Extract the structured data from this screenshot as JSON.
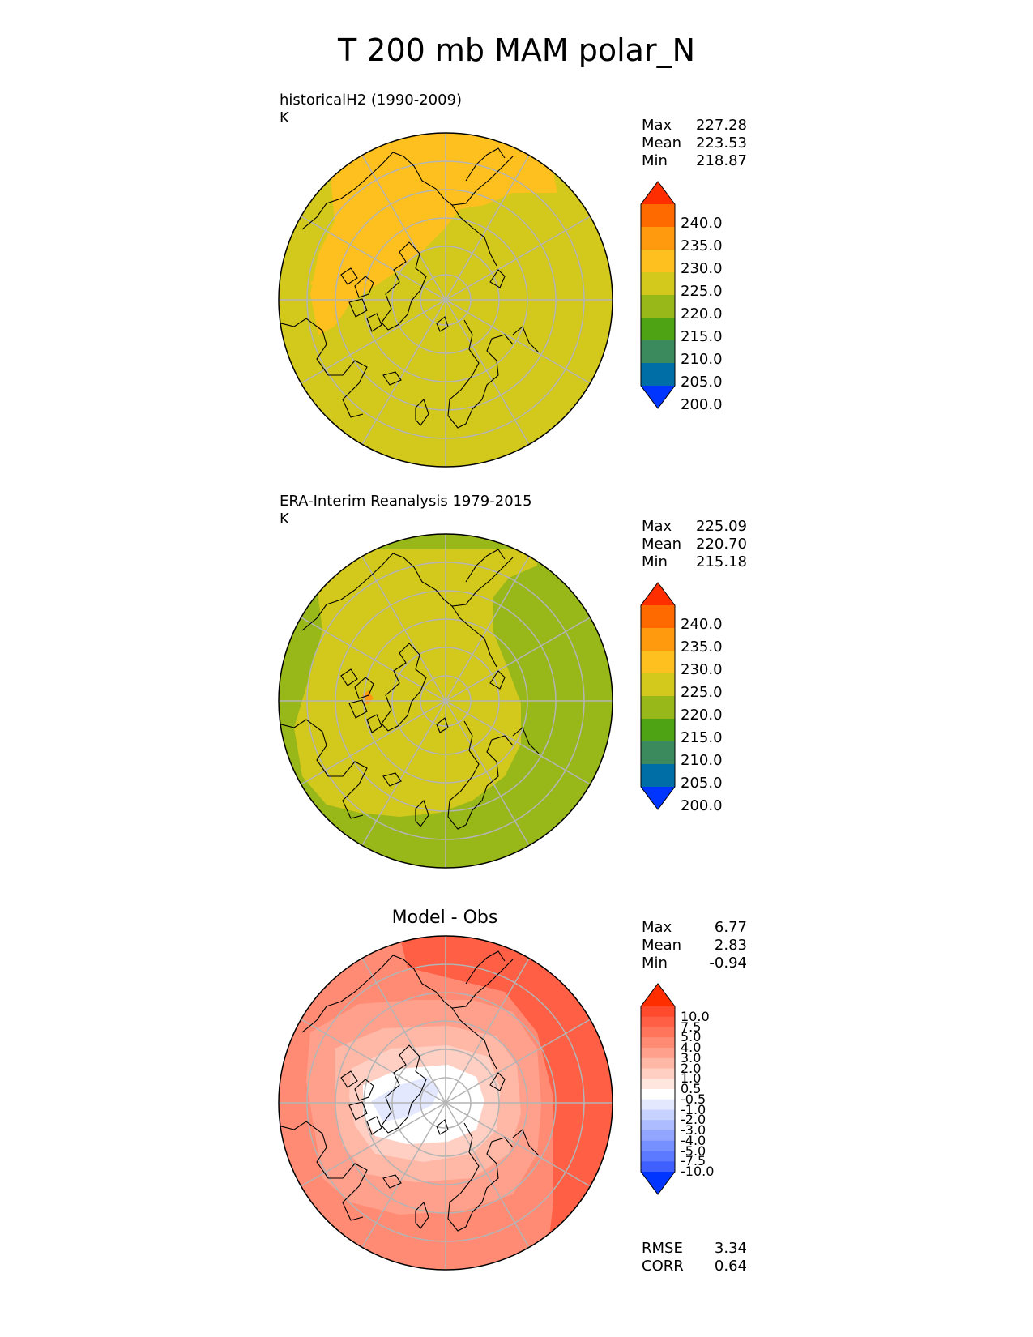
{
  "title": "T 200 mb MAM polar_N",
  "panels": [
    {
      "id": "model",
      "title_lines": [
        "historicalH2 (1990-2009)",
        "K"
      ],
      "stats": [
        {
          "label": "Max",
          "value": "227.28"
        },
        {
          "label": "Mean",
          "value": "223.53"
        },
        {
          "label": "Min",
          "value": "218.87"
        }
      ],
      "colorbar": {
        "ticks": [
          "240.0",
          "235.0",
          "230.0",
          "225.0",
          "220.0",
          "215.0",
          "210.0",
          "205.0",
          "200.0"
        ],
        "colors": [
          "#ff2e00",
          "#ff6a00",
          "#ff9a0f",
          "#fdc01f",
          "#d3c81c",
          "#98b819",
          "#4ea315",
          "#3a8a5e",
          "#006ea6",
          "#0034ff"
        ]
      }
    },
    {
      "id": "obs",
      "title_lines": [
        "ERA-Interim Reanalysis 1979-2015",
        "K"
      ],
      "stats": [
        {
          "label": "Max",
          "value": "225.09"
        },
        {
          "label": "Mean",
          "value": "220.70"
        },
        {
          "label": "Min",
          "value": "215.18"
        }
      ],
      "colorbar": {
        "ticks": [
          "240.0",
          "235.0",
          "230.0",
          "225.0",
          "220.0",
          "215.0",
          "210.0",
          "205.0",
          "200.0"
        ],
        "colors": [
          "#ff2e00",
          "#ff6a00",
          "#ff9a0f",
          "#fdc01f",
          "#d3c81c",
          "#98b819",
          "#4ea315",
          "#3a8a5e",
          "#006ea6",
          "#0034ff"
        ]
      }
    },
    {
      "id": "diff",
      "title": "Model - Obs",
      "stats": [
        {
          "label": "Max",
          "value": "6.77"
        },
        {
          "label": "Mean",
          "value": "2.83"
        },
        {
          "label": "Min",
          "value": "-0.94"
        }
      ],
      "extra_stats": [
        {
          "label": "RMSE",
          "value": "3.34"
        },
        {
          "label": "CORR",
          "value": "0.64"
        }
      ],
      "colorbar": {
        "ticks": [
          "10.0",
          "7.5",
          "5.0",
          "4.0",
          "3.0",
          "2.0",
          "1.0",
          "0.5",
          "-0.5",
          "-1.0",
          "-2.0",
          "-3.0",
          "-4.0",
          "-5.0",
          "-7.5",
          "-10.0"
        ],
        "colors": [
          "#ff2e00",
          "#ff4a2e",
          "#ff5f45",
          "#ff755c",
          "#ff8b74",
          "#ffa08c",
          "#ffb7a6",
          "#ffcfc3",
          "#ffe7e0",
          "#ffffff",
          "#e3e8ff",
          "#c8d2ff",
          "#adbcff",
          "#92a6ff",
          "#7790ff",
          "#5c7aff",
          "#3f5fff",
          "#0034ff"
        ]
      }
    }
  ],
  "colors": {
    "map_line": "#000000",
    "grid": "#b4b4b4"
  }
}
